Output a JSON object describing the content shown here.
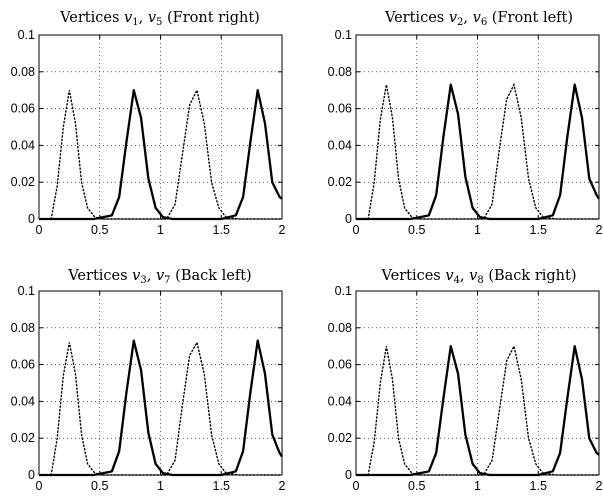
{
  "chart_data": [
    {
      "type": "line",
      "title_main": "Vertices ",
      "title_v1": "v",
      "title_s1": "1",
      "title_sep": ", ",
      "title_v2": "v",
      "title_s2": "5",
      "title_rest": " (Front right)",
      "xlim": [
        0,
        2
      ],
      "ylim": [
        0,
        0.1
      ],
      "x_ticks": [
        "0",
        "0.5",
        "1",
        "1.5",
        "2"
      ],
      "y_ticks": [
        "0",
        "0.02",
        "0.04",
        "0.06",
        "0.08",
        "0.1"
      ],
      "grid": true,
      "series": [
        {
          "style": "dotted",
          "x": [
            0.1,
            0.15,
            0.2,
            0.25,
            0.3,
            0.35,
            0.4,
            0.46,
            0.52,
            0.6,
            0.75,
            1.05,
            1.12,
            1.18,
            1.24,
            1.3,
            1.36,
            1.42,
            1.48,
            1.54,
            1.65,
            2.0
          ],
          "y": [
            0,
            0.018,
            0.05,
            0.07,
            0.052,
            0.02,
            0.006,
            0.001,
            0,
            0,
            0,
            0,
            0.008,
            0.035,
            0.062,
            0.07,
            0.052,
            0.02,
            0.006,
            0.001,
            0,
            0
          ]
        },
        {
          "style": "solid",
          "x": [
            0,
            0.45,
            0.6,
            0.66,
            0.72,
            0.78,
            0.84,
            0.9,
            0.96,
            1.02,
            1.1,
            1.5,
            1.62,
            1.68,
            1.74,
            1.8,
            1.86,
            1.92,
            1.98,
            2.0
          ],
          "y": [
            0,
            0,
            0.002,
            0.012,
            0.042,
            0.07,
            0.055,
            0.022,
            0.006,
            0.001,
            0,
            0,
            0.002,
            0.012,
            0.042,
            0.07,
            0.052,
            0.02,
            0.012,
            0.011
          ]
        }
      ]
    },
    {
      "type": "line",
      "title_main": "Vertices ",
      "title_v1": "v",
      "title_s1": "2",
      "title_sep": ", ",
      "title_v2": "v",
      "title_s2": "6",
      "title_rest": " (Front left)",
      "xlim": [
        0,
        2
      ],
      "ylim": [
        0,
        0.1
      ],
      "x_ticks": [
        "0",
        "0.5",
        "1",
        "1.5",
        "2"
      ],
      "y_ticks": [
        "0",
        "0.02",
        "0.04",
        "0.06",
        "0.08",
        "0.1"
      ],
      "grid": true,
      "series": [
        {
          "style": "dotted",
          "x": [
            0.1,
            0.15,
            0.2,
            0.25,
            0.3,
            0.35,
            0.4,
            0.46,
            0.52,
            0.6,
            0.75,
            1.05,
            1.12,
            1.18,
            1.24,
            1.3,
            1.36,
            1.42,
            1.48,
            1.54,
            1.65,
            2.0
          ],
          "y": [
            0,
            0.02,
            0.054,
            0.073,
            0.055,
            0.022,
            0.006,
            0.001,
            0,
            0,
            0,
            0,
            0.008,
            0.038,
            0.065,
            0.073,
            0.055,
            0.022,
            0.006,
            0.001,
            0,
            0
          ]
        },
        {
          "style": "solid",
          "x": [
            0,
            0.45,
            0.6,
            0.66,
            0.72,
            0.78,
            0.84,
            0.9,
            0.96,
            1.02,
            1.1,
            1.5,
            1.62,
            1.68,
            1.74,
            1.8,
            1.86,
            1.92,
            1.98,
            2.0
          ],
          "y": [
            0,
            0,
            0.002,
            0.013,
            0.045,
            0.073,
            0.057,
            0.023,
            0.006,
            0.001,
            0,
            0,
            0.002,
            0.013,
            0.045,
            0.073,
            0.055,
            0.022,
            0.013,
            0.011
          ]
        }
      ]
    },
    {
      "type": "line",
      "title_main": "Vertices ",
      "title_v1": "v",
      "title_s1": "3",
      "title_sep": ", ",
      "title_v2": "v",
      "title_s2": "7",
      "title_rest": " (Back left)",
      "xlim": [
        0,
        2
      ],
      "ylim": [
        0,
        0.1
      ],
      "x_ticks": [
        "0",
        "0.5",
        "1",
        "1.5",
        "2"
      ],
      "y_ticks": [
        "0",
        "0.02",
        "0.04",
        "0.06",
        "0.08",
        "0.1"
      ],
      "grid": true,
      "series": [
        {
          "style": "dotted",
          "x": [
            0.1,
            0.15,
            0.2,
            0.25,
            0.3,
            0.35,
            0.4,
            0.46,
            0.52,
            0.6,
            0.75,
            1.05,
            1.12,
            1.18,
            1.24,
            1.3,
            1.36,
            1.42,
            1.48,
            1.54,
            1.65,
            2.0
          ],
          "y": [
            0,
            0.02,
            0.054,
            0.072,
            0.055,
            0.022,
            0.006,
            0.001,
            0,
            0,
            0,
            0,
            0.008,
            0.038,
            0.065,
            0.072,
            0.055,
            0.022,
            0.006,
            0.001,
            0,
            0
          ]
        },
        {
          "style": "solid",
          "x": [
            0,
            0.45,
            0.6,
            0.66,
            0.72,
            0.78,
            0.84,
            0.9,
            0.96,
            1.02,
            1.1,
            1.5,
            1.62,
            1.68,
            1.74,
            1.8,
            1.86,
            1.92,
            1.98,
            2.0
          ],
          "y": [
            0,
            0,
            0.002,
            0.013,
            0.045,
            0.073,
            0.057,
            0.023,
            0.006,
            0.001,
            0,
            0,
            0.002,
            0.013,
            0.045,
            0.073,
            0.055,
            0.022,
            0.012,
            0.01
          ]
        }
      ]
    },
    {
      "type": "line",
      "title_main": "Vertices ",
      "title_v1": "v",
      "title_s1": "4",
      "title_sep": ", ",
      "title_v2": "v",
      "title_s2": "8",
      "title_rest": " (Back right)",
      "xlim": [
        0,
        2
      ],
      "ylim": [
        0,
        0.1
      ],
      "x_ticks": [
        "0",
        "0.5",
        "1",
        "1.5",
        "2"
      ],
      "y_ticks": [
        "0",
        "0.02",
        "0.04",
        "0.06",
        "0.08",
        "0.1"
      ],
      "grid": true,
      "series": [
        {
          "style": "dotted",
          "x": [
            0.1,
            0.15,
            0.2,
            0.25,
            0.3,
            0.35,
            0.4,
            0.46,
            0.52,
            0.6,
            0.75,
            1.05,
            1.12,
            1.18,
            1.24,
            1.3,
            1.36,
            1.42,
            1.48,
            1.54,
            1.65,
            2.0
          ],
          "y": [
            0,
            0.018,
            0.05,
            0.07,
            0.052,
            0.02,
            0.006,
            0.001,
            0,
            0,
            0,
            0,
            0.008,
            0.035,
            0.062,
            0.07,
            0.052,
            0.02,
            0.006,
            0.001,
            0,
            0
          ]
        },
        {
          "style": "solid",
          "x": [
            0,
            0.45,
            0.6,
            0.66,
            0.72,
            0.78,
            0.84,
            0.9,
            0.96,
            1.02,
            1.1,
            1.5,
            1.62,
            1.68,
            1.74,
            1.8,
            1.86,
            1.92,
            1.98,
            2.0
          ],
          "y": [
            0,
            0,
            0.002,
            0.012,
            0.042,
            0.07,
            0.055,
            0.022,
            0.006,
            0.001,
            0,
            0,
            0.002,
            0.012,
            0.042,
            0.07,
            0.052,
            0.02,
            0.012,
            0.011
          ]
        }
      ]
    }
  ]
}
